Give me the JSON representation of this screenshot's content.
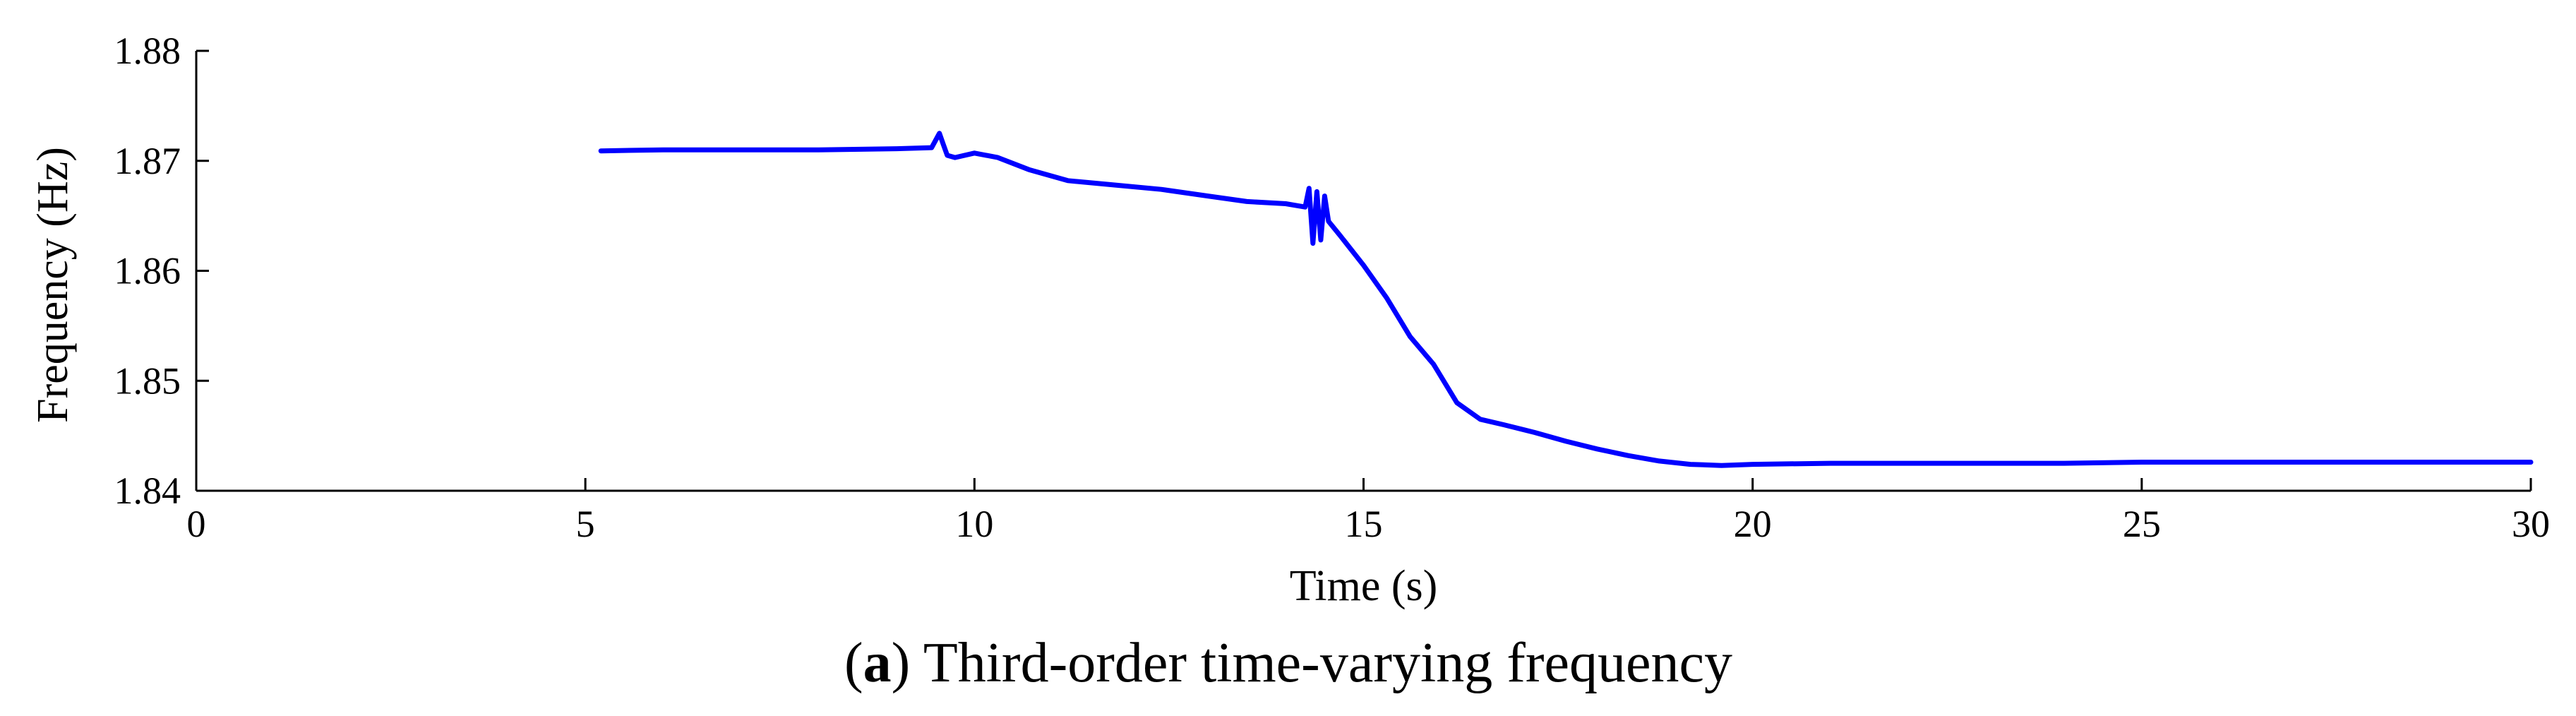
{
  "chart_data": {
    "type": "line",
    "title": "",
    "caption": {
      "label": "a",
      "text": "Third-order time-varying frequency"
    },
    "xlabel": "Time (s)",
    "ylabel": "Frequency (Hz)",
    "xlim": [
      0,
      30
    ],
    "ylim": [
      1.84,
      1.88
    ],
    "xticks": [
      0,
      5,
      10,
      15,
      20,
      25,
      30
    ],
    "xtick_labels": [
      "0",
      "5",
      "10",
      "15",
      "20",
      "25",
      "30"
    ],
    "yticks": [
      1.84,
      1.85,
      1.86,
      1.87,
      1.88
    ],
    "ytick_labels": [
      "1.84",
      "1.85",
      "1.86",
      "1.87",
      "1.88"
    ],
    "grid": false,
    "legend": "none",
    "series": [
      {
        "color": "#0000ff",
        "x": [
          5.2,
          6.0,
          7.0,
          8.0,
          9.0,
          9.45,
          9.55,
          9.6,
          9.65,
          9.75,
          10.0,
          10.3,
          10.7,
          11.2,
          11.8,
          12.4,
          13.0,
          13.5,
          14.0,
          14.25,
          14.3,
          14.35,
          14.4,
          14.45,
          14.5,
          14.55,
          14.7,
          15.0,
          15.3,
          15.6,
          15.9,
          16.2,
          16.5,
          16.8,
          17.2,
          17.6,
          18.0,
          18.4,
          18.8,
          19.2,
          19.6,
          20.0,
          21.0,
          22.0,
          23.0,
          24.0,
          25.0,
          26.0,
          27.0,
          28.0,
          29.0,
          30.0
        ],
        "y": [
          1.8709,
          1.871,
          1.871,
          1.871,
          1.8711,
          1.8712,
          1.8725,
          1.8715,
          1.8705,
          1.8703,
          1.8707,
          1.8703,
          1.8692,
          1.8682,
          1.8678,
          1.8674,
          1.8668,
          1.8663,
          1.8661,
          1.8658,
          1.8675,
          1.8625,
          1.8672,
          1.8628,
          1.8668,
          1.8645,
          1.8632,
          1.8605,
          1.8575,
          1.854,
          1.8515,
          1.848,
          1.8465,
          1.846,
          1.8453,
          1.8445,
          1.8438,
          1.8432,
          1.8427,
          1.8424,
          1.8423,
          1.8424,
          1.8425,
          1.8425,
          1.8425,
          1.8425,
          1.8426,
          1.8426,
          1.8426,
          1.8426,
          1.8426,
          1.8426
        ]
      }
    ]
  }
}
